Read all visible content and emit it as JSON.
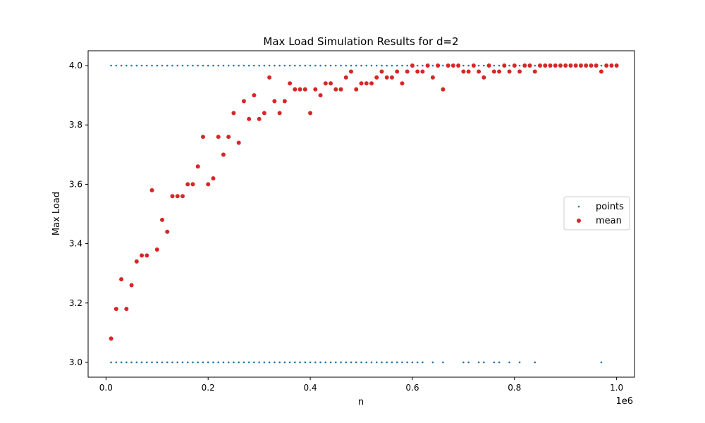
{
  "chart_data": {
    "type": "scatter",
    "title": "Max Load Simulation Results for d=2",
    "xlabel": "n",
    "ylabel": "Max Load",
    "x_offset_label": "1e6",
    "xlim": [
      -35000,
      1035000
    ],
    "ylim": [
      2.95,
      4.05
    ],
    "xticks": [
      0,
      200000,
      400000,
      600000,
      800000,
      1000000
    ],
    "xtick_labels": [
      "0.0",
      "0.2",
      "0.4",
      "0.6",
      "0.8",
      "1.0"
    ],
    "yticks": [
      3.0,
      3.2,
      3.4,
      3.6,
      3.8,
      4.0
    ],
    "ytick_labels": [
      "3.0",
      "3.2",
      "3.4",
      "3.6",
      "3.8",
      "4.0"
    ],
    "grid": false,
    "legend_position": "center-right",
    "series": [
      {
        "name": "points",
        "color": "#1f77b4",
        "marker_size": "small",
        "x_start": 10000,
        "x_step": 10000,
        "top_row": {
          "y": 4.0,
          "x_range": [
            10000,
            1000000
          ]
        },
        "bottom_row": {
          "y": 3.0,
          "x_range": [
            10000,
            590000
          ],
          "extra_x": [
            600000,
            610000,
            620000,
            640000,
            660000,
            700000,
            710000,
            730000,
            740000,
            760000,
            770000,
            790000,
            810000,
            840000,
            970000
          ]
        }
      },
      {
        "name": "mean",
        "color": "#d62728",
        "marker_size": "medium",
        "x": [
          10000,
          20000,
          30000,
          40000,
          50000,
          60000,
          70000,
          80000,
          90000,
          100000,
          110000,
          120000,
          130000,
          140000,
          150000,
          160000,
          170000,
          180000,
          190000,
          200000,
          210000,
          220000,
          230000,
          240000,
          250000,
          260000,
          270000,
          280000,
          290000,
          300000,
          310000,
          320000,
          330000,
          340000,
          350000,
          360000,
          370000,
          380000,
          390000,
          400000,
          410000,
          420000,
          430000,
          440000,
          450000,
          460000,
          470000,
          480000,
          490000,
          500000,
          510000,
          520000,
          530000,
          540000,
          550000,
          560000,
          570000,
          580000,
          590000,
          600000,
          610000,
          620000,
          630000,
          640000,
          650000,
          660000,
          670000,
          680000,
          690000,
          700000,
          710000,
          720000,
          730000,
          740000,
          750000,
          760000,
          770000,
          780000,
          790000,
          800000,
          810000,
          820000,
          830000,
          840000,
          850000,
          860000,
          870000,
          880000,
          890000,
          900000,
          910000,
          920000,
          930000,
          940000,
          950000,
          960000,
          970000,
          980000,
          990000,
          1000000
        ],
        "y": [
          3.08,
          3.18,
          3.28,
          3.18,
          3.26,
          3.34,
          3.36,
          3.36,
          3.58,
          3.38,
          3.48,
          3.44,
          3.56,
          3.56,
          3.56,
          3.6,
          3.6,
          3.66,
          3.76,
          3.6,
          3.62,
          3.76,
          3.7,
          3.76,
          3.84,
          3.74,
          3.88,
          3.82,
          3.9,
          3.82,
          3.84,
          3.96,
          3.88,
          3.84,
          3.88,
          3.94,
          3.92,
          3.92,
          3.92,
          3.84,
          3.92,
          3.9,
          3.94,
          3.94,
          3.92,
          3.92,
          3.96,
          3.98,
          3.92,
          3.94,
          3.94,
          3.94,
          3.96,
          3.98,
          3.96,
          3.96,
          3.98,
          3.94,
          3.98,
          4.0,
          3.98,
          3.98,
          4.0,
          3.96,
          4.0,
          3.92,
          4.0,
          4.0,
          4.0,
          3.98,
          3.98,
          4.0,
          3.98,
          3.96,
          4.0,
          3.98,
          3.98,
          4.0,
          3.98,
          4.0,
          3.98,
          4.0,
          4.0,
          3.98,
          4.0,
          4.0,
          4.0,
          4.0,
          4.0,
          4.0,
          4.0,
          4.0,
          4.0,
          4.0,
          4.0,
          4.0,
          3.98,
          4.0,
          4.0,
          4.0
        ]
      }
    ]
  }
}
